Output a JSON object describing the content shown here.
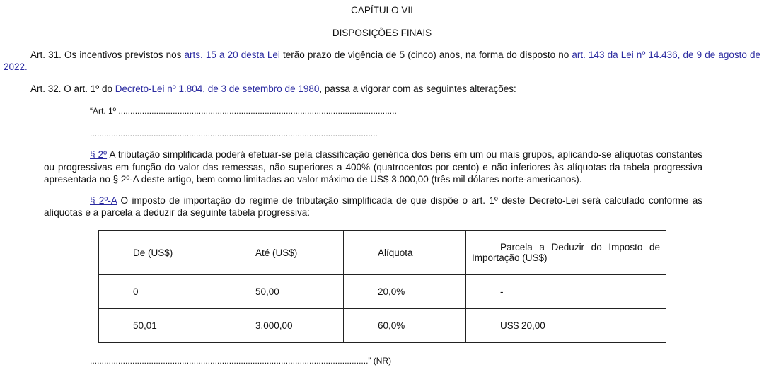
{
  "chapter": "CAPÍTULO VII",
  "section": "DISPOSIÇÕES FINAIS",
  "art31": {
    "prefix": "Art. 31. Os incentivos previstos nos ",
    "link1": "arts. 15 a 20 desta Lei",
    "middle": " terão prazo de vigência de 5 (cinco) anos, na forma do disposto no ",
    "link2a": "art. 143 da Lei nº 14.436, de 9 de agosto de",
    "link2b": "2022."
  },
  "art32": {
    "prefix": "Art. 32. O art. 1º do ",
    "link": "Decreto-Lei nº 1.804, de 3 de setembro de 1980",
    "suffix": ", passa a vigorar com as seguintes alterações:"
  },
  "quote_start": "“Art. 1º  ......................................................................................................................",
  "dots_line": "..........................................................................................................................",
  "par2": {
    "link": "§ 2º",
    "line1": " A tributação simplificada poderá efetuar-se pela classificação genérica dos bens em um ou mais grupos, aplicando-se alíquotas constantes",
    "line2": "ou progressivas em função do valor das remessas, não superiores a 400% (quatrocentos por cento) e não inferiores às alíquotas da tabela progressiva",
    "line3": "apresentada no § 2º-A deste artigo, bem como limitadas ao valor máximo de US$ 3.000,00 (três mil dólares norte-americanos)."
  },
  "par2a": {
    "link": "§ 2º-A",
    "line1": " O imposto de importação do regime de tributação simplificada de que dispõe o art. 1º deste Decreto-Lei será calculado conforme as",
    "line2": "alíquotas e a parcela a deduzir da seguinte tabela progressiva:"
  },
  "table": {
    "headers": [
      "De (US$)",
      "Até (US$)",
      "Alíquota",
      "Parcela a Deduzir do Imposto de Importação (US$)"
    ],
    "rows": [
      [
        "0",
        "50,00",
        "20,0%",
        "-"
      ],
      [
        "50,01",
        "3.000,00",
        "60,0%",
        "US$ 20,00"
      ]
    ]
  },
  "closing": "......................................................................................................................” (NR)"
}
